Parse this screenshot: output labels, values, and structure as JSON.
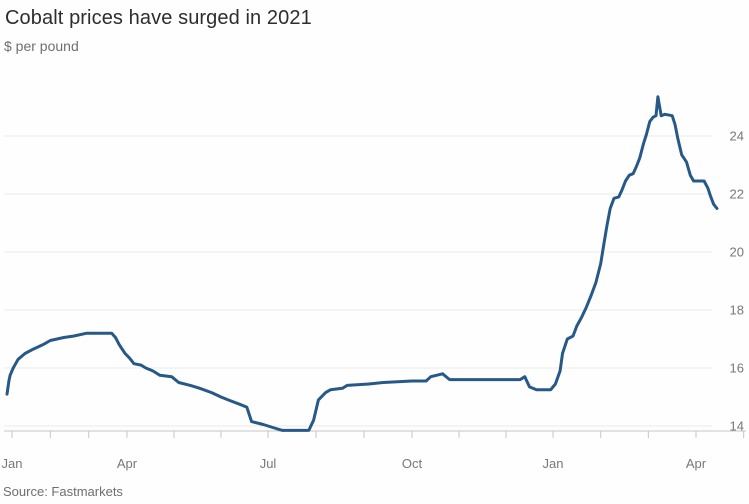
{
  "header": {
    "title": "Cobalt prices have surged in 2021",
    "subtitle": "$ per pound"
  },
  "footer": {
    "source": "Source: Fastmarkets"
  },
  "colors": {
    "line": "#275988",
    "gridline": "#e9e9e7",
    "axis": "#c6c6c4",
    "tick_label": "#787878",
    "title_text": "#2d2d2d",
    "muted_text": "#6f6f6f"
  },
  "chart_data": {
    "type": "line",
    "title": "Cobalt prices have surged in 2021",
    "ylabel": "$ per pound",
    "source": "Source: Fastmarkets",
    "legend": "none",
    "grid": "horizontal",
    "y_axis": {
      "side": "right",
      "ticks": [
        14,
        16,
        18,
        20,
        22,
        24
      ],
      "ylim": [
        13.5,
        25.7
      ]
    },
    "x_axis": {
      "unit": "months since Jan 2020",
      "tick_every_months": 1,
      "xlim": [
        0,
        16.1
      ],
      "labels": [
        {
          "text": "Jan",
          "month": 0
        },
        {
          "text": "Apr",
          "month": 3
        },
        {
          "text": "Jul",
          "month": 6
        },
        {
          "text": "Oct",
          "month": 9
        },
        {
          "text": "Jan",
          "month": 12
        },
        {
          "text": "Apr",
          "month": 15
        }
      ]
    },
    "series": [
      {
        "name": "Cobalt price, $ per pound",
        "points": [
          [
            -0.13,
            15.1
          ],
          [
            -0.08,
            15.55
          ],
          [
            -0.05,
            15.75
          ],
          [
            0.03,
            16.0
          ],
          [
            0.16,
            16.3
          ],
          [
            0.34,
            16.5
          ],
          [
            0.55,
            16.65
          ],
          [
            0.8,
            16.8
          ],
          [
            1.0,
            16.95
          ],
          [
            1.35,
            17.05
          ],
          [
            1.6,
            17.1
          ],
          [
            1.95,
            17.2
          ],
          [
            2.6,
            17.2
          ],
          [
            2.7,
            17.05
          ],
          [
            2.8,
            16.8
          ],
          [
            2.95,
            16.5
          ],
          [
            3.05,
            16.35
          ],
          [
            3.15,
            16.15
          ],
          [
            3.3,
            16.1
          ],
          [
            3.4,
            16.0
          ],
          [
            3.55,
            15.9
          ],
          [
            3.7,
            15.75
          ],
          [
            3.95,
            15.7
          ],
          [
            4.1,
            15.5
          ],
          [
            4.35,
            15.4
          ],
          [
            4.55,
            15.3
          ],
          [
            4.8,
            15.15
          ],
          [
            5.0,
            15.0
          ],
          [
            5.15,
            14.9
          ],
          [
            5.4,
            14.75
          ],
          [
            5.55,
            14.65
          ],
          [
            5.65,
            14.15
          ],
          [
            5.9,
            14.05
          ],
          [
            6.1,
            13.95
          ],
          [
            6.3,
            13.85
          ],
          [
            6.85,
            13.85
          ],
          [
            6.95,
            14.2
          ],
          [
            7.05,
            14.9
          ],
          [
            7.2,
            15.15
          ],
          [
            7.3,
            15.25
          ],
          [
            7.55,
            15.3
          ],
          [
            7.65,
            15.4
          ],
          [
            8.1,
            15.45
          ],
          [
            8.4,
            15.5
          ],
          [
            9.0,
            15.55
          ],
          [
            9.3,
            15.55
          ],
          [
            9.4,
            15.7
          ],
          [
            9.65,
            15.8
          ],
          [
            9.8,
            15.6
          ],
          [
            10.3,
            15.6
          ],
          [
            11.3,
            15.6
          ],
          [
            11.4,
            15.7
          ],
          [
            11.5,
            15.35
          ],
          [
            11.65,
            15.25
          ],
          [
            11.95,
            15.25
          ],
          [
            12.05,
            15.45
          ],
          [
            12.15,
            15.9
          ],
          [
            12.2,
            16.5
          ],
          [
            12.3,
            17.0
          ],
          [
            12.42,
            17.1
          ],
          [
            12.5,
            17.45
          ],
          [
            12.6,
            17.75
          ],
          [
            12.7,
            18.1
          ],
          [
            12.8,
            18.5
          ],
          [
            12.9,
            18.95
          ],
          [
            13.0,
            19.6
          ],
          [
            13.07,
            20.3
          ],
          [
            13.13,
            20.9
          ],
          [
            13.2,
            21.5
          ],
          [
            13.28,
            21.85
          ],
          [
            13.38,
            21.9
          ],
          [
            13.45,
            22.15
          ],
          [
            13.52,
            22.45
          ],
          [
            13.6,
            22.65
          ],
          [
            13.68,
            22.7
          ],
          [
            13.75,
            22.95
          ],
          [
            13.82,
            23.25
          ],
          [
            13.9,
            23.75
          ],
          [
            13.96,
            24.05
          ],
          [
            14.03,
            24.5
          ],
          [
            14.1,
            24.65
          ],
          [
            14.16,
            24.7
          ],
          [
            14.2,
            25.35
          ],
          [
            14.27,
            24.7
          ],
          [
            14.35,
            24.75
          ],
          [
            14.5,
            24.7
          ],
          [
            14.56,
            24.4
          ],
          [
            14.62,
            23.9
          ],
          [
            14.7,
            23.35
          ],
          [
            14.8,
            23.1
          ],
          [
            14.88,
            22.65
          ],
          [
            14.95,
            22.45
          ],
          [
            15.17,
            22.45
          ],
          [
            15.25,
            22.2
          ],
          [
            15.3,
            21.95
          ],
          [
            15.37,
            21.65
          ],
          [
            15.44,
            21.5
          ]
        ]
      }
    ]
  }
}
